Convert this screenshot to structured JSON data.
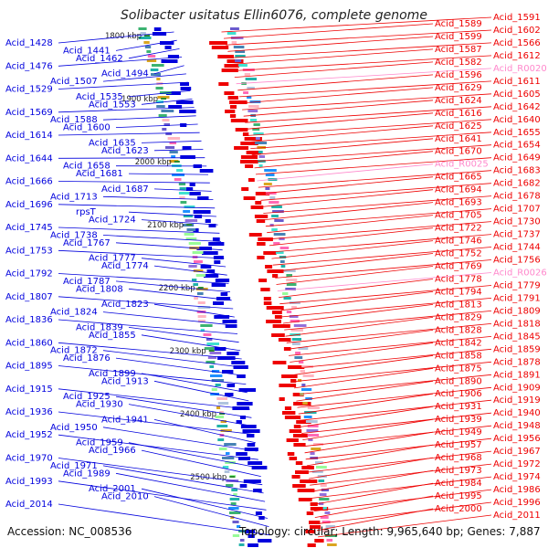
{
  "title": "Solibacter usitatus Ellin6076, complete genome",
  "footer": {
    "accession": "Accession: NC_008536",
    "summary": "Topology: circular; Length: 9,965,640 bp; Genes: 7,887"
  },
  "colors": {
    "left_strand": "#0000dd",
    "right_strand": "#ee0000",
    "rna": "#ff88cc",
    "backbone": "#888888",
    "ruler_text": "#222222"
  },
  "ruler": [
    "1800 kbp",
    "1900 kbp",
    "2000 kbp",
    "2100 kbp",
    "2200 kbp",
    "2300 kbp",
    "2400 kbp",
    "2500 kbp"
  ],
  "left_labels": [
    "Acid_1428",
    "Acid_1441",
    "Acid_1462",
    "Acid_1476",
    "Acid_1494",
    "Acid_1507",
    "Acid_1529",
    "Acid_1535",
    "Acid_1553",
    "Acid_1569",
    "Acid_1588",
    "Acid_1600",
    "Acid_1614",
    "Acid_1635",
    "Acid_1623",
    "Acid_1644",
    "Acid_1658",
    "Acid_1681",
    "Acid_1666",
    "Acid_1687",
    "Acid_1713",
    "Acid_1696",
    "rpsT",
    "Acid_1724",
    "Acid_1745",
    "Acid_1738",
    "Acid_1767",
    "Acid_1753",
    "Acid_1777",
    "Acid_1774",
    "Acid_1792",
    "Acid_1787",
    "Acid_1808",
    "Acid_1807",
    "Acid_1823",
    "Acid_1824",
    "Acid_1836",
    "Acid_1839",
    "Acid_1855",
    "Acid_1860",
    "Acid_1872",
    "Acid_1876",
    "Acid_1895",
    "Acid_1899",
    "Acid_1913",
    "Acid_1915",
    "Acid_1925",
    "Acid_1930",
    "Acid_1936",
    "Acid_1941",
    "Acid_1950",
    "Acid_1952",
    "Acid_1959",
    "Acid_1966",
    "Acid_1970",
    "Acid_1971",
    "Acid_1989",
    "Acid_1993",
    "Acid_2001",
    "Acid_2010",
    "Acid_2014"
  ],
  "right_labels": [
    "Acid_1591",
    "Acid_1589",
    "Acid_1602",
    "Acid_1599",
    "Acid_1566",
    "Acid_1587",
    "Acid_1612",
    "Acid_1582",
    "Acid_R0020",
    "Acid_1596",
    "Acid_1611",
    "Acid_1629",
    "Acid_1605",
    "Acid_1624",
    "Acid_1642",
    "Acid_1616",
    "Acid_1640",
    "Acid_1625",
    "Acid_1655",
    "Acid_1641",
    "Acid_1654",
    "Acid_1670",
    "Acid_1649",
    "Acid_R0025",
    "Acid_1683",
    "Acid_1665",
    "Acid_1682",
    "Acid_1694",
    "Acid_1678",
    "Acid_1693",
    "Acid_1707",
    "Acid_1705",
    "Acid_1730",
    "Acid_1722",
    "Acid_1737",
    "Acid_1746",
    "Acid_1744",
    "Acid_1752",
    "Acid_1756",
    "Acid_1769",
    "Acid_R0026",
    "Acid_1778",
    "Acid_1779",
    "Acid_1794",
    "Acid_1791",
    "Acid_1813",
    "Acid_1809",
    "Acid_1829",
    "Acid_1818",
    "Acid_1828",
    "Acid_1845",
    "Acid_1842",
    "Acid_1859",
    "Acid_1858",
    "Acid_1878",
    "Acid_1875",
    "Acid_1891",
    "Acid_1890",
    "Acid_1909",
    "Acid_1906",
    "Acid_1919",
    "Acid_1931",
    "Acid_1940",
    "Acid_1939",
    "Acid_1948",
    "Acid_1949",
    "Acid_1956",
    "Acid_1957",
    "Acid_1967",
    "Acid_1968",
    "Acid_1972",
    "Acid_1973",
    "Acid_1974",
    "Acid_1984",
    "Acid_1986",
    "Acid_1995",
    "Acid_1996",
    "Acid_2000",
    "Acid_2011"
  ]
}
